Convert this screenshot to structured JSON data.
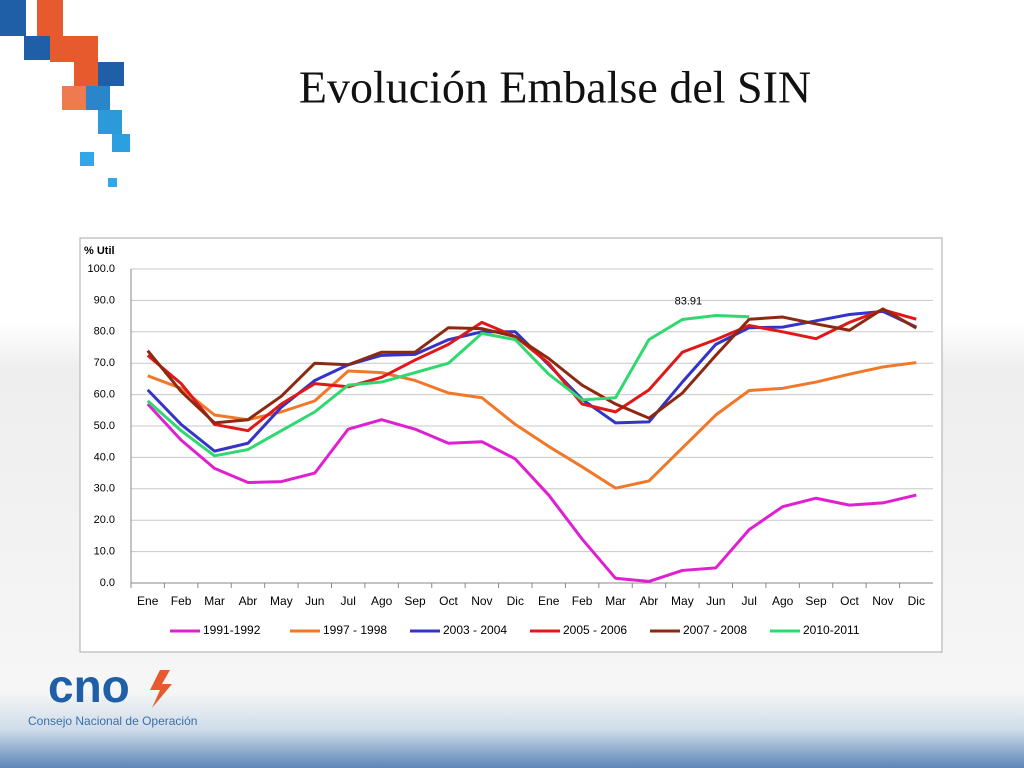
{
  "chart_data": {
    "type": "line",
    "title": "Evolución Embalse del SIN",
    "ylabel": "% Util",
    "categories": [
      "Ene",
      "Feb",
      "Mar",
      "Abr",
      "May",
      "Jun",
      "Jul",
      "Ago",
      "Sep",
      "Oct",
      "Nov",
      "Dic",
      "Ene",
      "Feb",
      "Mar",
      "Abr",
      "May",
      "Jun",
      "Jul",
      "Ago",
      "Sep",
      "Oct",
      "Nov",
      "Dic"
    ],
    "ylim": [
      0,
      100
    ],
    "yticks": [
      {
        "value": 0,
        "label": "0.0"
      },
      {
        "value": 10,
        "label": "10.0"
      },
      {
        "value": 20,
        "label": "20.0"
      },
      {
        "value": 30,
        "label": "30.0"
      },
      {
        "value": 40,
        "label": "40.0"
      },
      {
        "value": 50,
        "label": "50.0"
      },
      {
        "value": 60,
        "label": "60.0"
      },
      {
        "value": 70,
        "label": "70.0"
      },
      {
        "value": 80,
        "label": "80.0"
      },
      {
        "value": 90,
        "label": "90.0"
      },
      {
        "value": 100,
        "label": "100.0"
      }
    ],
    "grid": true,
    "legend": "bottom",
    "series": [
      {
        "name": "1991-1992",
        "color": "#e020d0",
        "values": [
          57,
          45.5,
          36.5,
          32,
          32.3,
          35,
          49,
          52,
          49,
          44.5,
          45,
          39.5,
          28,
          14,
          1.5,
          0.5,
          4,
          4.8,
          17,
          24.3,
          27,
          24.8,
          25.5,
          28
        ]
      },
      {
        "name": "1997 - 1998",
        "color": "#f07828",
        "values": [
          66,
          62,
          53.5,
          52,
          54.5,
          58,
          67.5,
          67,
          64.5,
          60.5,
          59,
          50.5,
          43.5,
          37,
          30.2,
          32.5,
          43,
          53.5,
          61.3,
          62,
          64,
          66.5,
          68.8,
          70.2
        ]
      },
      {
        "name": "2003 - 2004",
        "color": "#3434c8",
        "values": [
          61.5,
          50.5,
          42,
          44.5,
          56,
          64.5,
          69.5,
          72.5,
          72.8,
          77.5,
          80,
          80,
          69.5,
          58.5,
          51,
          51.3,
          64,
          76,
          81.3,
          81.5,
          83.5,
          85.5,
          86.5,
          81.5
        ]
      },
      {
        "name": "2005 - 2006",
        "color": "#e01818",
        "values": [
          72.5,
          63.5,
          50.5,
          48.5,
          57,
          63.5,
          62.5,
          65.5,
          71,
          76,
          83,
          78.5,
          70,
          57,
          54.5,
          61.5,
          73.5,
          77.5,
          82,
          80,
          77.8,
          83,
          87,
          84
        ]
      },
      {
        "name": "2007 - 2008",
        "color": "#8b2a10",
        "values": [
          74,
          61,
          51,
          52,
          59.5,
          70,
          69.5,
          73.5,
          73.5,
          81.3,
          81,
          78.5,
          71.5,
          63,
          57,
          52.5,
          60.5,
          72.5,
          84,
          84.7,
          82.5,
          80.5,
          87.3,
          81.2
        ]
      },
      {
        "name": "2010-2011",
        "color": "#30d870",
        "values": [
          58,
          48.5,
          40.5,
          42.5,
          48.5,
          54.5,
          63,
          64,
          67,
          70,
          79.5,
          77.5,
          66.5,
          58.3,
          59,
          77.5,
          83.91,
          85.2,
          84.8,
          null,
          null,
          null,
          null,
          null
        ],
        "value_labels": [
          null,
          null,
          null,
          null,
          null,
          null,
          null,
          null,
          null,
          null,
          null,
          null,
          null,
          null,
          null,
          null,
          "83.91",
          null,
          null,
          null,
          null,
          null,
          null,
          null
        ]
      }
    ]
  },
  "logo": {
    "name": "cno",
    "subtitle": "Consejo Nacional de Operación"
  }
}
